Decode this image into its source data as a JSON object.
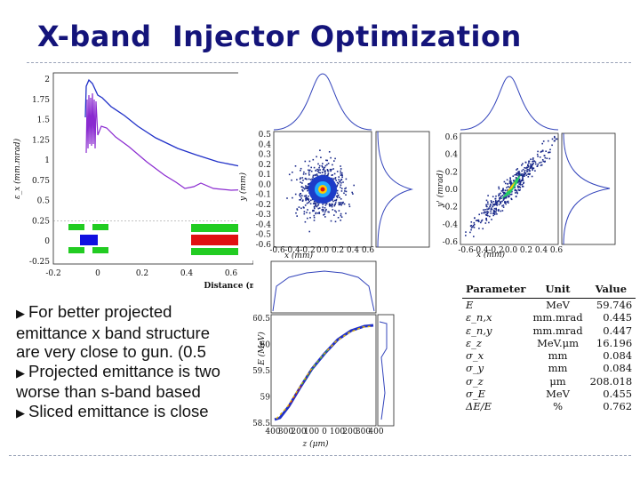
{
  "title": "X-band  Injector Optimization",
  "emittance_plot": {
    "ylabel": "ε_x (mm.mrad)",
    "xlabel": "Distance (m)",
    "y_ticks": [
      "2",
      "1.75",
      "1.5",
      "1.25",
      "1",
      "0.75",
      "0.5",
      "0.25",
      "0",
      "-0.25"
    ],
    "x_ticks": [
      "-0.2",
      "0",
      "0.2",
      "0.4",
      "0.6"
    ],
    "colors": {
      "projected": "#2030c8",
      "sliced": "#8a2ad0",
      "structure": "#22cc22",
      "solenoid": "#e01010",
      "gun": "#1010e0"
    }
  },
  "xy_scatter": {
    "ylabel": "y (mm)",
    "xlabel": "x (mm)",
    "y_ticks": [
      "0.5",
      "0.4",
      "0.3",
      "0.2",
      "0.1",
      "0.0",
      "-0.1",
      "-0.2",
      "-0.3",
      "-0.4",
      "-0.5",
      "-0.6"
    ],
    "x_ticks": [
      "-0.6",
      "-0.4",
      "-0.2",
      "0.0",
      "0.2",
      "0.4",
      "0.6"
    ]
  },
  "phase_space": {
    "ylabel": "y' (mrad)",
    "xlabel": "x (mm)",
    "y_ticks": [
      "0.6",
      "0.4",
      "0.2",
      "0.0",
      "-0.2",
      "-0.4",
      "-0.6"
    ],
    "x_ticks": [
      "-0.6",
      "-0.4",
      "-0.2",
      "0.0",
      "0.2",
      "0.4",
      "0.6"
    ]
  },
  "longitudinal": {
    "ylabel": "E (MeV)",
    "xlabel": "z (μm)",
    "y_ticks": [
      "60.5",
      "60",
      "59.5",
      "59",
      "58.5"
    ],
    "x_ticks": [
      "400",
      "300",
      "200",
      "100",
      "0",
      "100",
      "200",
      "300",
      "400"
    ]
  },
  "bullets": [
    {
      "lines": [
        "For better projected",
        "emittance x band structure",
        "are very close to gun. (0.5"
      ]
    },
    {
      "lines": [
        "Projected emittance is two",
        "worse than s-band based"
      ]
    },
    {
      "lines": [
        "Sliced emittance is close"
      ]
    }
  ],
  "params_table": {
    "headers": [
      "Parameter",
      "Unit",
      "Value"
    ],
    "rows": [
      [
        "E",
        "MeV",
        "59.746"
      ],
      [
        "ε_n,x",
        "mm.mrad",
        "0.445"
      ],
      [
        "ε_n,y",
        "mm.mrad",
        "0.447"
      ],
      [
        "ε_z",
        "MeV.μm",
        "16.196"
      ],
      [
        "σ_x",
        "mm",
        "0.084"
      ],
      [
        "σ_y",
        "mm",
        "0.084"
      ],
      [
        "σ_z",
        "μm",
        "208.018"
      ],
      [
        "σ_E",
        "MeV",
        "0.455"
      ],
      [
        "ΔE/E",
        "%",
        "0.762"
      ]
    ]
  }
}
